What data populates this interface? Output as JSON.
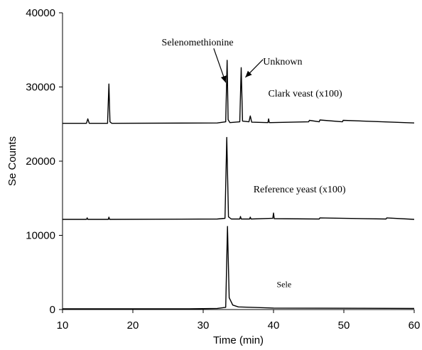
{
  "chart_data": {
    "type": "line",
    "title": "",
    "xlabel": "Time (min)",
    "ylabel": "Se Counts",
    "xlim": [
      10,
      60
    ],
    "ylim": [
      0,
      40000
    ],
    "xticks": [
      10,
      20,
      30,
      40,
      50,
      60
    ],
    "yticks": [
      0,
      10000,
      20000,
      30000,
      40000
    ],
    "xtick_labels": [
      "10",
      "20",
      "30",
      "40",
      "50",
      "60"
    ],
    "ytick_labels": [
      "0",
      "10000",
      "20000",
      "30000",
      "40000"
    ],
    "grid": false,
    "legend": "none",
    "series": [
      {
        "name": "Clark yeast (x100)",
        "color": "#000000",
        "x": [
          10,
          13.4,
          13.6,
          13.8,
          16.4,
          16.6,
          16.75,
          17.0,
          32,
          33.2,
          33.4,
          33.55,
          33.8,
          35.2,
          35.4,
          35.6,
          36.5,
          36.7,
          36.9,
          39.2,
          39.3,
          39.4,
          45,
          45.1,
          46.5,
          46.6,
          49.8,
          49.9,
          60
        ],
        "y": [
          25100,
          25100,
          25700,
          25100,
          25100,
          30400,
          25300,
          25100,
          25150,
          25300,
          33600,
          25600,
          25200,
          25300,
          32600,
          25400,
          25300,
          26100,
          25250,
          25200,
          25700,
          25200,
          25300,
          25500,
          25300,
          25550,
          25300,
          25500,
          25150
        ],
        "annotation": "Clark veast (x100)"
      },
      {
        "name": "Reference yeast (x100)",
        "color": "#000000",
        "x": [
          10,
          13.4,
          13.5,
          13.6,
          16.5,
          16.6,
          16.7,
          32,
          33.1,
          33.35,
          33.6,
          34,
          35.2,
          35.3,
          35.4,
          36.6,
          36.7,
          36.8,
          39.9,
          40.0,
          40.1,
          46.5,
          46.6,
          56,
          56.1,
          60
        ],
        "y": [
          12150,
          12150,
          12350,
          12150,
          12150,
          12450,
          12150,
          12200,
          12300,
          23200,
          12500,
          12200,
          12200,
          12550,
          12200,
          12200,
          12450,
          12200,
          12300,
          13000,
          12250,
          12200,
          12350,
          12200,
          12350,
          12150
        ],
        "annotation": "Reference yeast (x100)"
      },
      {
        "name": "Sele",
        "color": "#000000",
        "x": [
          10,
          28,
          32,
          33.2,
          33.45,
          33.7,
          34.2,
          35,
          40,
          60
        ],
        "y": [
          100,
          100,
          150,
          300,
          11200,
          1600,
          600,
          350,
          200,
          150
        ],
        "annotation": "Sele"
      }
    ],
    "annotations": [
      {
        "text": "Selenomethionine",
        "arrow_from": [
          31.5,
          35200
        ],
        "arrow_to": [
          33.2,
          30600
        ]
      },
      {
        "text": "Unknown",
        "arrow_from": [
          38.5,
          33700
        ],
        "arrow_to": [
          36.0,
          31300
        ]
      }
    ]
  }
}
